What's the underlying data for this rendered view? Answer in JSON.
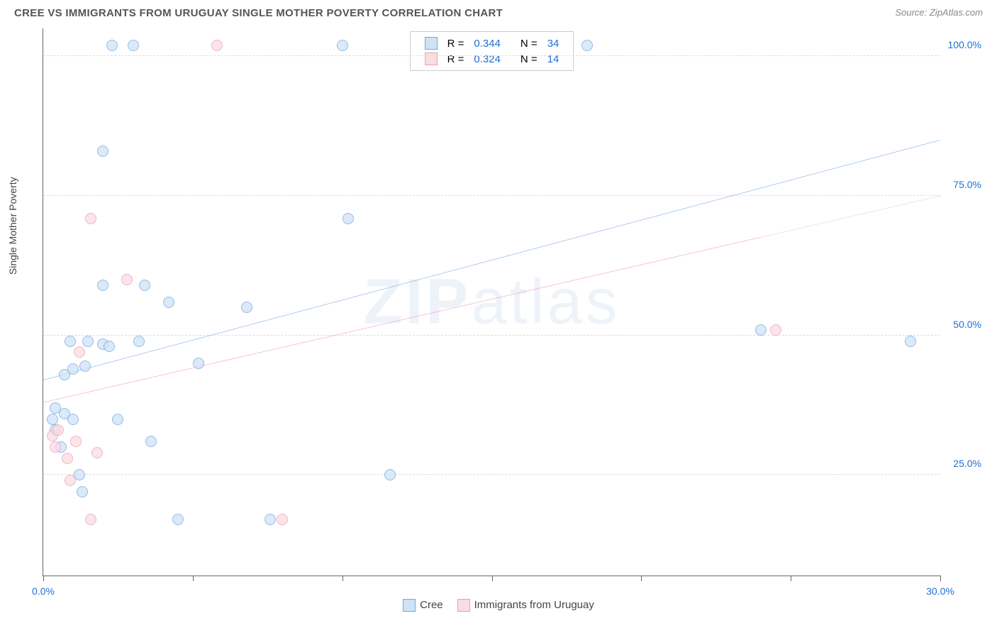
{
  "header": {
    "title": "CREE VS IMMIGRANTS FROM URUGUAY SINGLE MOTHER POVERTY CORRELATION CHART",
    "source_prefix": "Source: ",
    "source_name": "ZipAtlas.com"
  },
  "ylabel": "Single Mother Poverty",
  "watermark_text": "ZIPatlas",
  "colors": {
    "series_blue_fill": "#cfe2f6",
    "series_blue_stroke": "#6ea8e0",
    "series_pink_fill": "#fadce3",
    "series_pink_stroke": "#e8a0b2",
    "trend_blue": "#1f6fd4",
    "trend_pink": "#e85a87",
    "axis_label_blue": "#1f6fd4",
    "grid": "#dddddd",
    "axis": "#666666",
    "title_color": "#555555",
    "source_color": "#888888",
    "watermark_color": "#eef3f9"
  },
  "chart": {
    "type": "scatter",
    "xmin": 0,
    "xmax": 30,
    "ymin": 7,
    "ymax": 105,
    "x_ticks": [
      0,
      5,
      10,
      15,
      20,
      25,
      30
    ],
    "x_tick_labels": {
      "0": "0.0%",
      "30": "30.0%"
    },
    "y_gridlines": [
      25,
      50,
      75,
      100
    ],
    "y_tick_labels": {
      "25": "25.0%",
      "50": "50.0%",
      "75": "75.0%",
      "100": "100.0%"
    },
    "point_radius": 8,
    "point_opacity": 0.75,
    "series": [
      {
        "name": "Cree",
        "color_fill_key": "series_blue_fill",
        "color_stroke_key": "series_blue_stroke",
        "R": "0.344",
        "N": "34",
        "trend": {
          "x1": 0,
          "y1": 42,
          "x2": 30,
          "y2": 85,
          "color_key": "trend_blue",
          "extrapolate_from_x": null
        },
        "points": [
          {
            "x": 0.3,
            "y": 35
          },
          {
            "x": 0.4,
            "y": 33
          },
          {
            "x": 0.6,
            "y": 30
          },
          {
            "x": 0.7,
            "y": 36
          },
          {
            "x": 0.7,
            "y": 43
          },
          {
            "x": 1.0,
            "y": 44
          },
          {
            "x": 1.0,
            "y": 35
          },
          {
            "x": 1.2,
            "y": 25
          },
          {
            "x": 1.3,
            "y": 22
          },
          {
            "x": 1.4,
            "y": 44.5
          },
          {
            "x": 1.5,
            "y": 49
          },
          {
            "x": 2.0,
            "y": 48.5
          },
          {
            "x": 2.0,
            "y": 59
          },
          {
            "x": 2.0,
            "y": 83
          },
          {
            "x": 2.3,
            "y": 102
          },
          {
            "x": 2.5,
            "y": 35
          },
          {
            "x": 3.0,
            "y": 102
          },
          {
            "x": 3.2,
            "y": 49
          },
          {
            "x": 3.4,
            "y": 59
          },
          {
            "x": 3.6,
            "y": 31
          },
          {
            "x": 4.2,
            "y": 56
          },
          {
            "x": 4.5,
            "y": 17
          },
          {
            "x": 5.2,
            "y": 45
          },
          {
            "x": 6.8,
            "y": 55
          },
          {
            "x": 7.6,
            "y": 17
          },
          {
            "x": 10.0,
            "y": 102
          },
          {
            "x": 10.2,
            "y": 71
          },
          {
            "x": 11.6,
            "y": 25
          },
          {
            "x": 18.2,
            "y": 102
          },
          {
            "x": 24.0,
            "y": 51
          },
          {
            "x": 29.0,
            "y": 49
          },
          {
            "x": 0.9,
            "y": 49
          },
          {
            "x": 2.2,
            "y": 48
          },
          {
            "x": 0.4,
            "y": 37
          }
        ]
      },
      {
        "name": "Immigrants from Uruguay",
        "color_fill_key": "series_pink_fill",
        "color_stroke_key": "series_pink_stroke",
        "R": "0.324",
        "N": "14",
        "trend": {
          "x1": 0,
          "y1": 38,
          "x2": 30,
          "y2": 75,
          "color_key": "trend_pink",
          "extrapolate_from_x": 24
        },
        "points": [
          {
            "x": 0.3,
            "y": 32
          },
          {
            "x": 0.4,
            "y": 30
          },
          {
            "x": 0.5,
            "y": 33
          },
          {
            "x": 0.8,
            "y": 28
          },
          {
            "x": 0.9,
            "y": 24
          },
          {
            "x": 1.1,
            "y": 31
          },
          {
            "x": 1.2,
            "y": 47
          },
          {
            "x": 1.6,
            "y": 71
          },
          {
            "x": 1.6,
            "y": 17
          },
          {
            "x": 1.8,
            "y": 29
          },
          {
            "x": 2.8,
            "y": 60
          },
          {
            "x": 5.8,
            "y": 102
          },
          {
            "x": 8.0,
            "y": 17
          },
          {
            "x": 24.5,
            "y": 51
          }
        ]
      }
    ]
  },
  "legend_box": {
    "rows": [
      {
        "swatch_series": 0,
        "r_label": "R =",
        "r_val": "0.344",
        "n_label": "N =",
        "n_val": "34"
      },
      {
        "swatch_series": 1,
        "r_label": "R =",
        "r_val": "0.324",
        "n_label": "N =",
        "n_val": "14"
      }
    ]
  },
  "bottom_legend": [
    {
      "swatch_series": 0,
      "label": "Cree"
    },
    {
      "swatch_series": 1,
      "label": "Immigrants from Uruguay"
    }
  ]
}
